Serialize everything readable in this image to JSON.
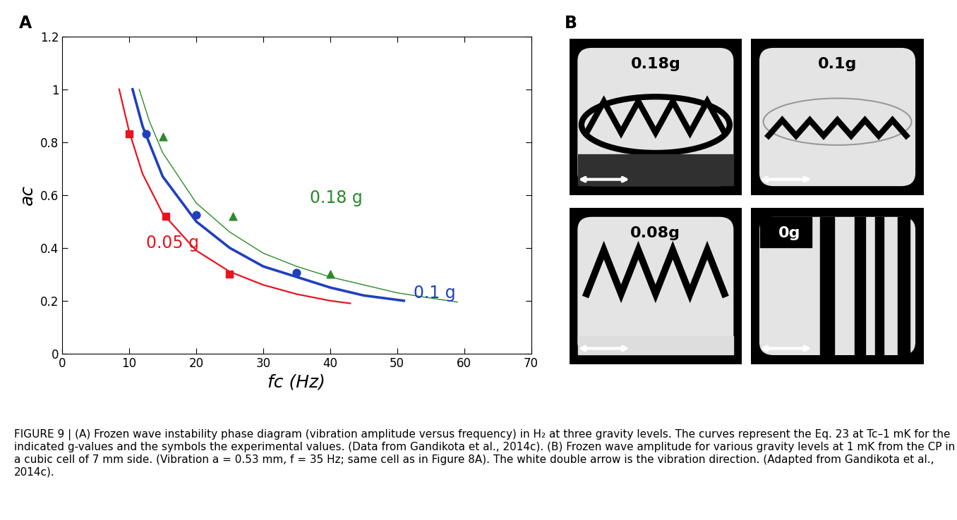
{
  "chart_data": {
    "type": "line",
    "panel_label": "A",
    "x_label": "fc (Hz)",
    "y_label": "ac",
    "xlim": [
      0,
      70
    ],
    "xticks": [
      0,
      10,
      20,
      30,
      40,
      50,
      60,
      70
    ],
    "ylim": [
      0,
      1.2
    ],
    "yticks": [
      0,
      0.2,
      0.4,
      0.6,
      0.8,
      1,
      1.2
    ],
    "grid": false,
    "series": [
      {
        "name": "0.05 g",
        "type": "line",
        "color": "#e8141e",
        "line_style": "solid",
        "x": [
          8.5,
          10,
          12,
          15,
          20,
          25,
          30,
          35,
          40,
          43
        ],
        "values": [
          1.0,
          0.84,
          0.68,
          0.53,
          0.39,
          0.31,
          0.26,
          0.225,
          0.2,
          0.19
        ]
      },
      {
        "name": "0.1 g",
        "type": "line",
        "color": "#1f3fbf",
        "line_style": "solid",
        "x": [
          10.5,
          12,
          15,
          20,
          25,
          30,
          35,
          40,
          45,
          51
        ],
        "values": [
          1.0,
          0.86,
          0.67,
          0.5,
          0.4,
          0.33,
          0.29,
          0.25,
          0.22,
          0.2
        ]
      },
      {
        "name": "0.18 g",
        "type": "line",
        "color": "#2a8a2a",
        "line_style": "solid",
        "x": [
          11.5,
          13,
          15,
          20,
          25,
          30,
          35,
          40,
          45,
          50,
          55,
          59
        ],
        "values": [
          1.0,
          0.88,
          0.76,
          0.57,
          0.46,
          0.38,
          0.33,
          0.29,
          0.26,
          0.23,
          0.21,
          0.195
        ]
      },
      {
        "type": "scatter",
        "color": "#e8141e",
        "marker": "square",
        "x": [
          10,
          15.5,
          25
        ],
        "values": [
          0.83,
          0.52,
          0.3
        ]
      },
      {
        "type": "scatter",
        "color": "#1f3fbf",
        "marker": "circle",
        "x": [
          12.5,
          20,
          35
        ],
        "values": [
          0.83,
          0.525,
          0.305
        ]
      },
      {
        "type": "scatter",
        "color": "#2a8a2a",
        "marker": "triangle",
        "x": [
          15,
          25.5,
          40
        ],
        "values": [
          0.82,
          0.52,
          0.3
        ]
      }
    ]
  },
  "panel_b": {
    "panel_label": "B",
    "images": [
      {
        "label": "0.18g"
      },
      {
        "label": "0.1g"
      },
      {
        "label": "0.08g"
      },
      {
        "label": "0g"
      }
    ]
  },
  "caption": "FIGURE 9 | (A) Frozen wave instability phase diagram (vibration amplitude versus frequency) in H₂ at three gravity levels. The curves represent the Eq. 23 at Tc–1 mK for the indicated g-values and the symbols the experimental values. (Data from Gandikota et al., 2014c). (B) Frozen wave amplitude for various gravity levels at 1 mK from the CP in a cubic cell of 7 mm side. (Vibration a = 0.53 mm, f = 35 Hz; same cell as in Figure 8A). The white double arrow is the vibration direction. (Adapted from Gandikota et al., 2014c)."
}
